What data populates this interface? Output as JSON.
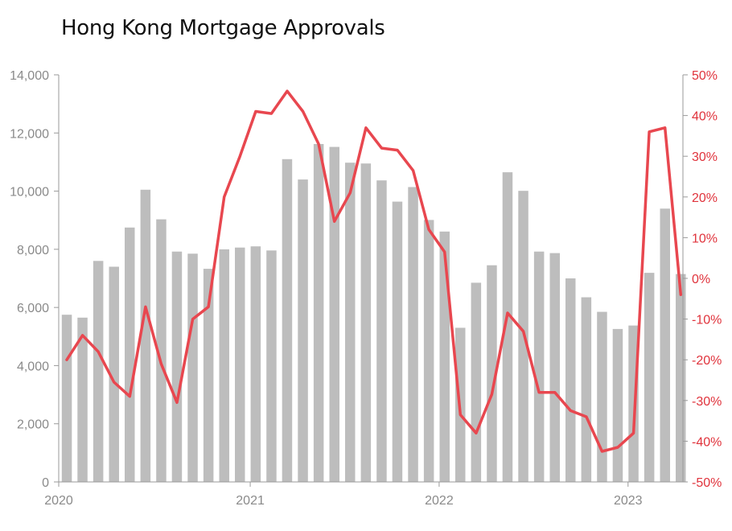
{
  "chart_data": {
    "type": "bar",
    "title": "Hong Kong Mortgage Approvals",
    "xlabel": "",
    "ylabel": "",
    "ylim": [
      0,
      14000
    ],
    "y2lim": [
      -0.5,
      0.5
    ],
    "y_ticks": [
      "0",
      "2,000",
      "4,000",
      "6,000",
      "8,000",
      "10,000",
      "12,000",
      "14,000"
    ],
    "y2_ticks": [
      "-50%",
      "-40%",
      "-30%",
      "-20%",
      "-10%",
      "0%",
      "10%",
      "20%",
      "30%",
      "40%",
      "50%"
    ],
    "x_tick_labels": [
      "2020",
      "2021",
      "2022",
      "2023"
    ],
    "x_tick_month_index": [
      0,
      12,
      24,
      36
    ],
    "grid": false,
    "legend": "none",
    "colors": {
      "bars": "#bdbdbd",
      "line": "#e8474f",
      "right_axis": "#e0333c",
      "left_axis": "#8a8a8a"
    },
    "categories": [
      "2020-01",
      "2020-02",
      "2020-03",
      "2020-04",
      "2020-05",
      "2020-06",
      "2020-07",
      "2020-08",
      "2020-09",
      "2020-10",
      "2020-11",
      "2020-12",
      "2021-01",
      "2021-02",
      "2021-03",
      "2021-04",
      "2021-05",
      "2021-06",
      "2021-07",
      "2021-08",
      "2021-09",
      "2021-10",
      "2021-11",
      "2021-12",
      "2022-01",
      "2022-02",
      "2022-03",
      "2022-04",
      "2022-05",
      "2022-06",
      "2022-07",
      "2022-08",
      "2022-09",
      "2022-10",
      "2022-11",
      "2022-12",
      "2023-01",
      "2023-02",
      "2023-03",
      "2023-04"
    ],
    "series": [
      {
        "type": "bar",
        "axis": "left",
        "values": [
          5750,
          5650,
          7600,
          7400,
          8750,
          10050,
          9030,
          7920,
          7850,
          7330,
          8000,
          8060,
          8100,
          7960,
          11100,
          10400,
          11620,
          11520,
          10980,
          10950,
          10370,
          9640,
          10140,
          9010,
          8610,
          5300,
          6850,
          7450,
          10650,
          10010,
          7920,
          7870,
          7000,
          6350,
          5850,
          5260,
          5380,
          7190,
          9400,
          7150
        ]
      },
      {
        "type": "line",
        "axis": "right",
        "values": [
          -0.2,
          -0.14,
          -0.18,
          -0.255,
          -0.29,
          -0.07,
          -0.21,
          -0.305,
          -0.1,
          -0.07,
          0.2,
          0.3,
          0.41,
          0.405,
          0.46,
          0.41,
          0.33,
          0.14,
          0.21,
          0.37,
          0.32,
          0.315,
          0.265,
          0.12,
          0.065,
          -0.335,
          -0.38,
          -0.285,
          -0.085,
          -0.13,
          -0.28,
          -0.28,
          -0.325,
          -0.34,
          -0.425,
          -0.415,
          -0.38,
          0.36,
          0.37,
          -0.04
        ]
      }
    ]
  }
}
